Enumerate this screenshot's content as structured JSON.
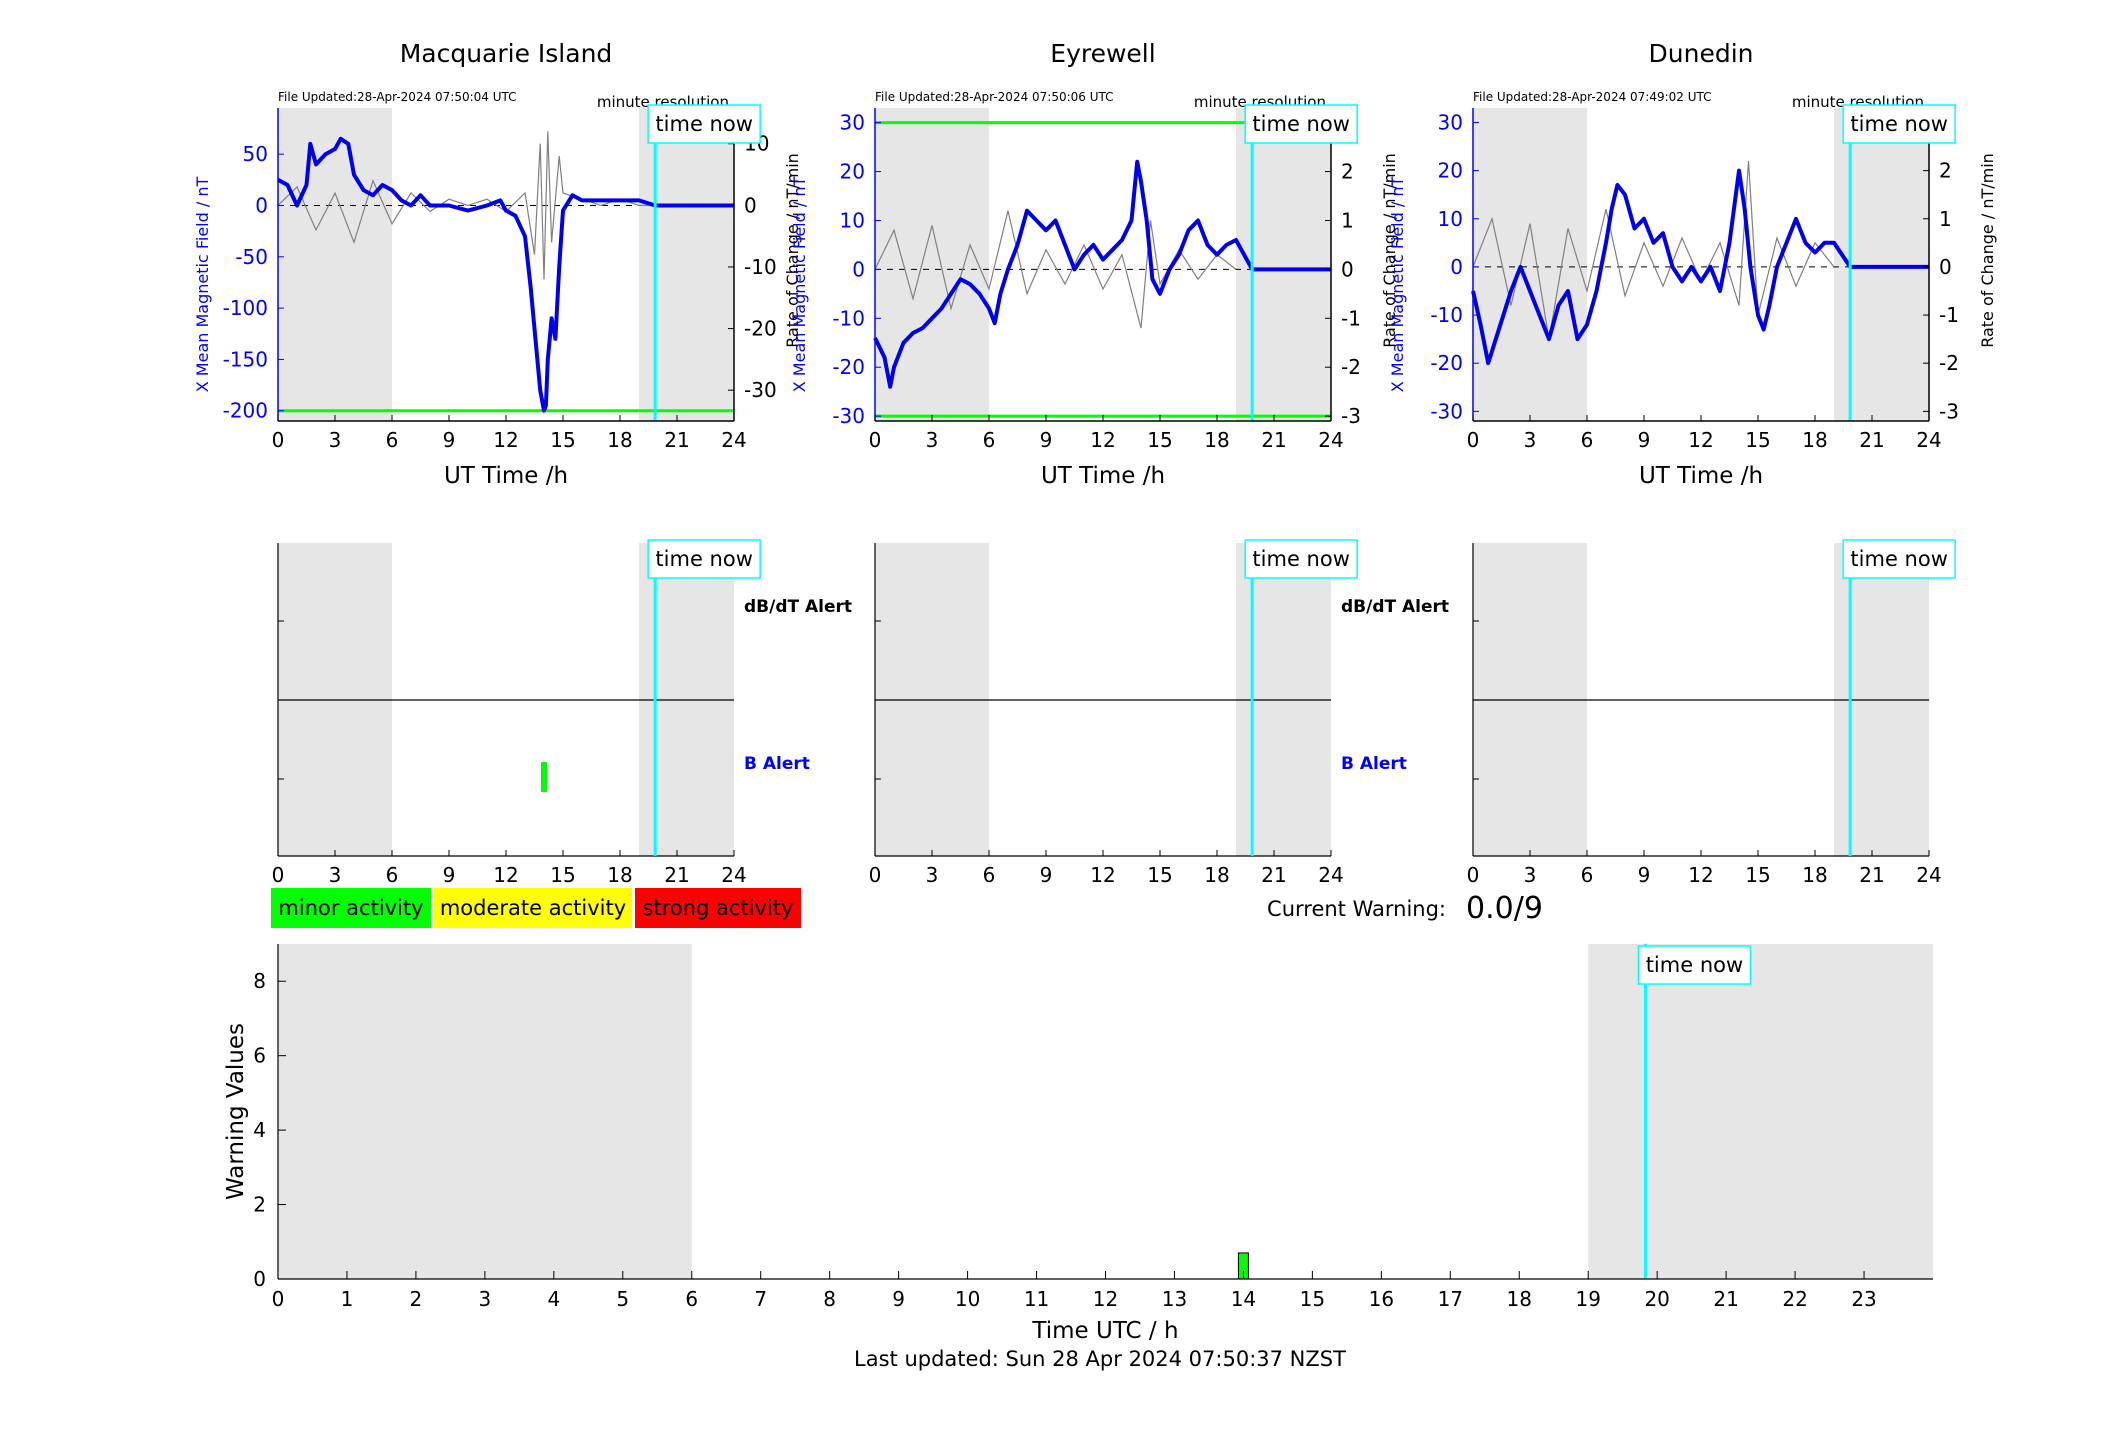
{
  "page": {
    "footer": "Last updated: Sun 28 Apr 2024 07:50:37 NZST",
    "current_warning_label": "Current Warning:",
    "current_warning_value": "0.0/9"
  },
  "legend": [
    {
      "label": "minor activity",
      "color": "#00ff00"
    },
    {
      "label": "moderate activity",
      "color": "#ffff00"
    },
    {
      "label": "strong activity",
      "color": "#ff0000"
    }
  ],
  "colors": {
    "field_line": "#0000ee",
    "rate_line": "#808080",
    "time_now": "#00ffff",
    "night_shade": "#e6e6e6",
    "threshold": "#00ff00",
    "axis_left": "#0000ff"
  },
  "chart_data": [
    {
      "type": "line",
      "title": "Macquarie Island",
      "file_updated": "File Updated:28-Apr-2024 07:50:04 UTC",
      "resolution_label": "minute resolution",
      "time_now_label": "time now",
      "xlabel": "UT Time /h",
      "ylabel_left": "X Mean Magnetic Field / nT",
      "ylabel_right": "Rate of Change / nT/min",
      "xlim": [
        0,
        24
      ],
      "xticks": [
        0,
        3,
        6,
        9,
        12,
        15,
        18,
        21,
        24
      ],
      "ylim_left": [
        -210,
        95
      ],
      "yticks_left": [
        -200,
        -150,
        -100,
        -50,
        0,
        50
      ],
      "ylim_right": [
        -35,
        15.8
      ],
      "yticks_right": [
        -30,
        -20,
        -10,
        0,
        10
      ],
      "night_shading": [
        [
          0,
          6
        ],
        [
          19,
          24
        ]
      ],
      "threshold_lines": [
        -200
      ],
      "time_now": 19.85,
      "field_series": {
        "name": "X Mean Magnetic Field",
        "x": [
          0,
          0.5,
          1,
          1.5,
          1.7,
          2,
          2.5,
          3,
          3.3,
          3.7,
          4,
          4.5,
          5,
          5.5,
          6,
          6.5,
          7,
          7.5,
          8,
          9,
          10,
          11,
          11.7,
          12,
          12.5,
          13,
          13.3,
          13.6,
          13.8,
          14,
          14.1,
          14.2,
          14.4,
          14.6,
          14.8,
          15,
          15.5,
          16,
          17,
          18,
          19,
          19.85,
          24
        ],
        "y": [
          25,
          20,
          0,
          20,
          60,
          40,
          50,
          55,
          65,
          60,
          30,
          15,
          10,
          20,
          15,
          5,
          0,
          10,
          0,
          0,
          -5,
          0,
          5,
          -5,
          -10,
          -30,
          -80,
          -140,
          -180,
          -200,
          -195,
          -150,
          -110,
          -130,
          -60,
          -5,
          10,
          5,
          5,
          5,
          5,
          0,
          0
        ]
      },
      "rate_series": {
        "name": "Rate of Change",
        "x": [
          0,
          1,
          2,
          3,
          4,
          5,
          6,
          7,
          8,
          9,
          10,
          11,
          12,
          13,
          13.5,
          13.8,
          14,
          14.2,
          14.4,
          14.8,
          15,
          16,
          17,
          18,
          19,
          19.85
        ],
        "y": [
          0,
          3,
          -4,
          2,
          -6,
          4,
          -3,
          2,
          -1,
          1,
          0,
          1,
          -1,
          2,
          -8,
          10,
          -12,
          12,
          -6,
          8,
          2,
          1,
          0,
          1,
          0,
          0
        ]
      },
      "alert_strip": {
        "labels": [
          "dB/dT Alert",
          "B Alert"
        ],
        "b_alert_marks": [
          14
        ]
      }
    },
    {
      "type": "line",
      "title": "Eyrewell",
      "file_updated": "File Updated:28-Apr-2024 07:50:06 UTC",
      "resolution_label": "minute resolution",
      "time_now_label": "time now",
      "xlabel": "UT Time /h",
      "ylabel_left": "X Mean Magnetic Field / nT",
      "ylabel_right": "Rate of Change / nT/min",
      "xlim": [
        0,
        24
      ],
      "xticks": [
        0,
        3,
        6,
        9,
        12,
        15,
        18,
        21,
        24
      ],
      "ylim_left": [
        -31,
        33
      ],
      "yticks_left": [
        -30,
        -20,
        -10,
        0,
        10,
        20,
        30
      ],
      "ylim_right": [
        -3.1,
        3.3
      ],
      "yticks_right": [
        -3,
        -2,
        -1,
        0,
        1,
        2,
        3
      ],
      "night_shading": [
        [
          0,
          6
        ],
        [
          19,
          24
        ]
      ],
      "threshold_lines": [
        30,
        -30
      ],
      "time_now": 19.85,
      "field_series": {
        "name": "X Mean Magnetic Field",
        "x": [
          0,
          0.5,
          0.8,
          1,
          1.5,
          2,
          2.5,
          3,
          3.5,
          4,
          4.5,
          5,
          5.5,
          6,
          6.3,
          6.6,
          7,
          7.5,
          8,
          8.5,
          9,
          9.5,
          10,
          10.5,
          11,
          11.5,
          12,
          12.5,
          13,
          13.5,
          13.8,
          14,
          14.3,
          14.6,
          15,
          15.5,
          16,
          16.5,
          17,
          17.5,
          18,
          18.5,
          19,
          19.85,
          24
        ],
        "y": [
          -14,
          -18,
          -24,
          -20,
          -15,
          -13,
          -12,
          -10,
          -8,
          -5,
          -2,
          -3,
          -5,
          -8,
          -11,
          -5,
          0,
          5,
          12,
          10,
          8,
          10,
          5,
          0,
          3,
          5,
          2,
          4,
          6,
          10,
          22,
          18,
          10,
          -2,
          -5,
          0,
          3,
          8,
          10,
          5,
          3,
          5,
          6,
          0,
          0
        ]
      },
      "rate_series": {
        "name": "Rate of Change",
        "x": [
          0,
          1,
          2,
          3,
          4,
          5,
          6,
          7,
          8,
          9,
          10,
          11,
          12,
          13,
          14,
          14.5,
          15,
          16,
          17,
          18,
          19
        ],
        "y": [
          0,
          0.8,
          -0.6,
          0.9,
          -0.8,
          0.5,
          -0.4,
          1.2,
          -0.5,
          0.4,
          -0.3,
          0.5,
          -0.4,
          0.3,
          -1.2,
          1.0,
          -0.3,
          0.4,
          -0.2,
          0.3,
          0
        ]
      },
      "alert_strip": {
        "labels": [
          "dB/dT Alert",
          "B Alert"
        ],
        "b_alert_marks": []
      }
    },
    {
      "type": "line",
      "title": "Dunedin",
      "file_updated": "File Updated:28-Apr-2024 07:49:02 UTC",
      "resolution_label": "minute resolution",
      "time_now_label": "time now",
      "xlabel": "UT Time /h",
      "ylabel_left": "X Mean Magnetic Field / nT",
      "ylabel_right": "Rate of Change / nT/min",
      "xlim": [
        0,
        24
      ],
      "xticks": [
        0,
        3,
        6,
        9,
        12,
        15,
        18,
        21,
        24
      ],
      "ylim_left": [
        -32,
        33
      ],
      "yticks_left": [
        -30,
        -20,
        -10,
        0,
        10,
        20,
        30
      ],
      "ylim_right": [
        -3.2,
        3.3
      ],
      "yticks_right": [
        -3,
        -2,
        -1,
        0,
        1,
        2,
        3
      ],
      "night_shading": [
        [
          0,
          6
        ],
        [
          19,
          24
        ]
      ],
      "threshold_lines": [],
      "time_now": 19.85,
      "field_series": {
        "name": "X Mean Magnetic Field",
        "x": [
          0,
          0.4,
          0.8,
          1.2,
          1.6,
          2,
          2.5,
          3,
          3.5,
          4,
          4.5,
          5,
          5.5,
          6,
          6.5,
          7,
          7.3,
          7.6,
          8,
          8.5,
          9,
          9.5,
          10,
          10.5,
          11,
          11.5,
          12,
          12.5,
          13,
          13.5,
          14,
          14.3,
          14.6,
          15,
          15.3,
          15.6,
          16,
          16.5,
          17,
          17.5,
          18,
          18.5,
          19,
          19.85,
          24
        ],
        "y": [
          -5,
          -12,
          -20,
          -15,
          -10,
          -5,
          0,
          -5,
          -10,
          -15,
          -8,
          -5,
          -15,
          -12,
          -5,
          5,
          12,
          17,
          15,
          8,
          10,
          5,
          7,
          0,
          -3,
          0,
          -3,
          0,
          -5,
          5,
          20,
          12,
          0,
          -10,
          -13,
          -8,
          0,
          5,
          10,
          5,
          3,
          5,
          5,
          0,
          0
        ]
      },
      "rate_series": {
        "name": "Rate of Change",
        "x": [
          0,
          1,
          2,
          3,
          4,
          5,
          6,
          7,
          8,
          9,
          10,
          11,
          12,
          13,
          14,
          14.5,
          15,
          16,
          17,
          18,
          19
        ],
        "y": [
          0,
          1.0,
          -0.8,
          0.9,
          -1.5,
          0.8,
          -0.5,
          1.2,
          -0.6,
          0.5,
          -0.4,
          0.6,
          -0.3,
          0.5,
          -0.8,
          2.2,
          -1.0,
          0.6,
          -0.4,
          0.5,
          0
        ]
      },
      "alert_strip": {
        "labels": [],
        "b_alert_marks": []
      }
    },
    {
      "type": "bar",
      "title": "",
      "xlabel": "Time UTC / h",
      "ylabel": "Warning Values",
      "xlim": [
        0,
        24
      ],
      "xticks": [
        0,
        1,
        2,
        3,
        4,
        5,
        6,
        7,
        8,
        9,
        10,
        11,
        12,
        13,
        14,
        15,
        16,
        17,
        18,
        19,
        20,
        21,
        22,
        23
      ],
      "ylim": [
        0,
        9
      ],
      "yticks": [
        0,
        2,
        4,
        6,
        8
      ],
      "night_shading": [
        [
          0,
          6
        ],
        [
          19,
          24
        ]
      ],
      "time_now": 19.83,
      "time_now_label": "time now",
      "bars": [
        {
          "x": 14,
          "value": 0.7,
          "level": "minor activity"
        }
      ]
    }
  ]
}
